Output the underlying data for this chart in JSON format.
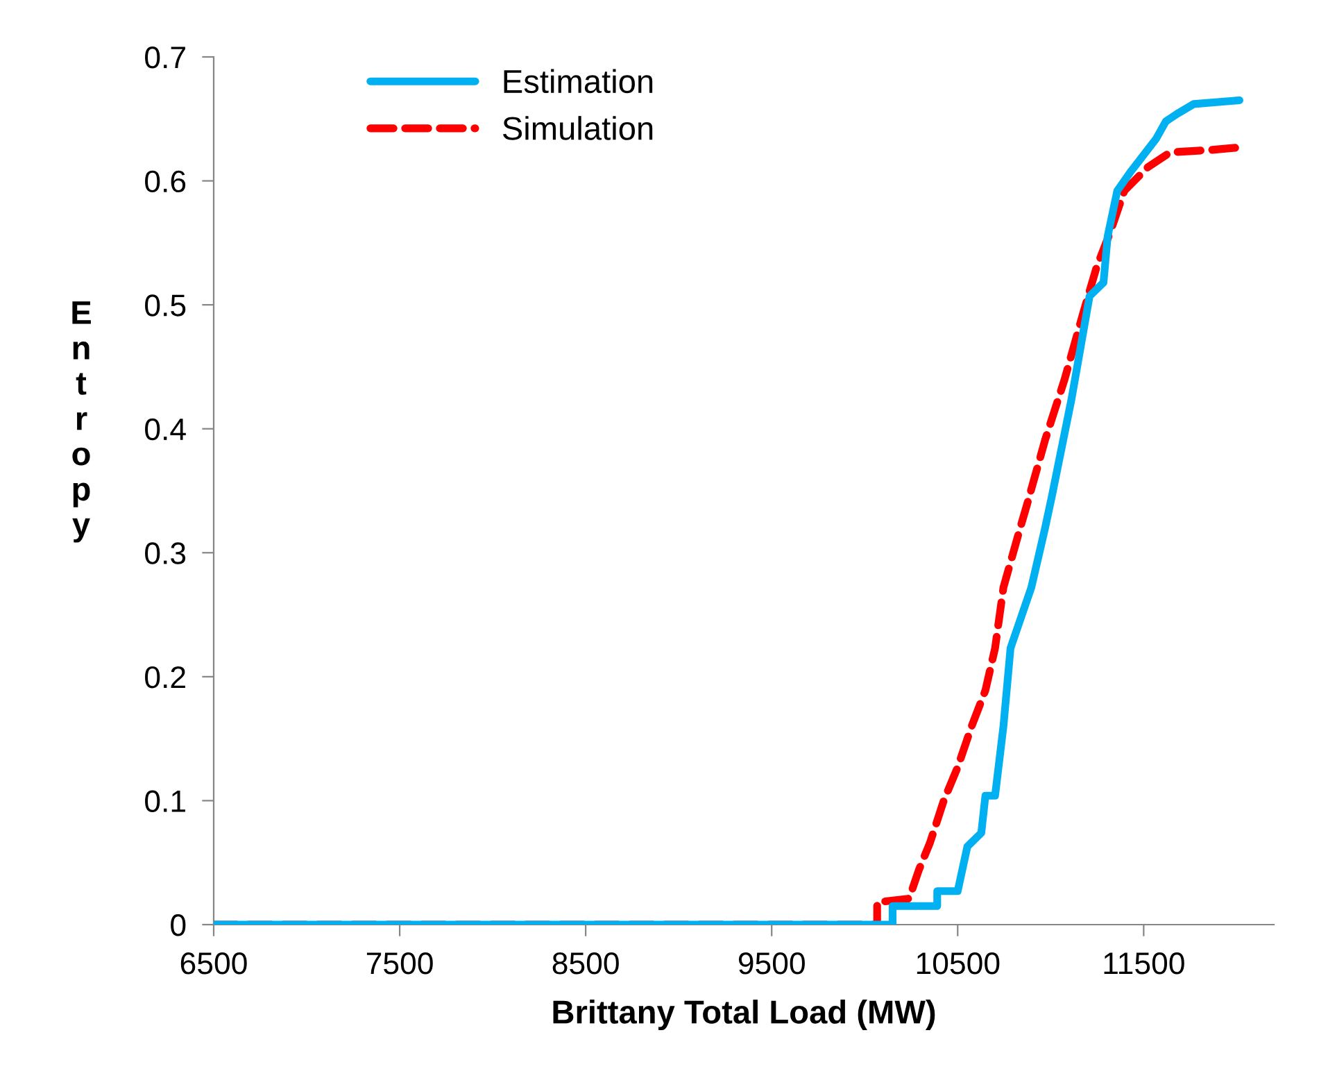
{
  "chart_data": {
    "type": "line",
    "xlabel": "Brittany Total Load (MW)",
    "ylabel": "Entropy",
    "xlim": [
      6500,
      12200
    ],
    "xticks": [
      6500,
      7500,
      8500,
      9500,
      10500,
      11500
    ],
    "ylim": [
      0,
      0.7
    ],
    "yticks": [
      0,
      0.1,
      0.2,
      0.3,
      0.4,
      0.5,
      0.6,
      0.7
    ],
    "grid": false,
    "legend": "top left",
    "marker": "none",
    "series": [
      {
        "name": "Estimation",
        "color": "#00b0f0",
        "line_style": "solid",
        "x": [
          6500,
          10150,
          10150,
          10390,
          10390,
          10500,
          10552,
          10627,
          10649,
          10701,
          10746,
          10784,
          10896,
          10970,
          11007,
          11112,
          11209,
          11284,
          11306,
          11358,
          11433,
          11567,
          11619,
          11679,
          11769,
          12015
        ],
        "values": [
          0,
          0,
          0.015,
          0.015,
          0.027,
          0.027,
          0.063,
          0.074,
          0.104,
          0.104,
          0.16,
          0.223,
          0.272,
          0.32,
          0.346,
          0.424,
          0.507,
          0.518,
          0.555,
          0.592,
          0.608,
          0.634,
          0.648,
          0.654,
          0.662,
          0.665
        ]
      },
      {
        "name": "Simulation",
        "color": "#ff0000",
        "line_style": "dashed",
        "x": [
          6500,
          10067,
          10067,
          10239,
          10291,
          10351,
          10425,
          10500,
          10575,
          10649,
          10701,
          10746,
          10836,
          10873,
          10970,
          11075,
          11172,
          11246,
          11321,
          11396,
          11522,
          11642,
          11866,
          12015
        ],
        "values": [
          0,
          0,
          0.018,
          0.021,
          0.044,
          0.066,
          0.1,
          0.127,
          0.16,
          0.189,
          0.223,
          0.272,
          0.32,
          0.339,
          0.391,
          0.44,
          0.492,
          0.53,
          0.559,
          0.592,
          0.611,
          0.623,
          0.625,
          0.627
        ]
      }
    ]
  }
}
